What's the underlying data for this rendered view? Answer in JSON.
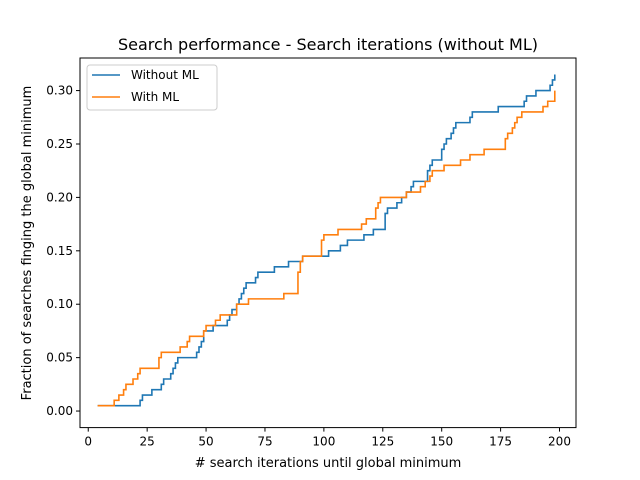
{
  "chart_data": {
    "type": "line",
    "title": "Search performance - Search iterations (without ML)",
    "xlabel": "# search iterations until global minimum",
    "ylabel": "Fraction of searches finging the global minimum",
    "xlim": [
      -3.5,
      207
    ],
    "ylim": [
      -0.0155,
      0.3305
    ],
    "xticks": [
      0,
      25,
      50,
      75,
      100,
      125,
      150,
      175,
      200
    ],
    "xtick_labels": [
      "0",
      "25",
      "50",
      "75",
      "100",
      "125",
      "150",
      "175",
      "200"
    ],
    "yticks": [
      0.0,
      0.05,
      0.1,
      0.15,
      0.2,
      0.25,
      0.3
    ],
    "ytick_labels": [
      "0.00",
      "0.05",
      "0.10",
      "0.15",
      "0.20",
      "0.25",
      "0.30"
    ],
    "grid": false,
    "legend_position": "top-left",
    "step": true,
    "series": [
      {
        "name": "Without ML",
        "color": "#1f77b4",
        "points": [
          [
            4,
            0.005
          ],
          [
            21,
            0.005
          ],
          [
            22,
            0.01
          ],
          [
            23,
            0.015
          ],
          [
            26,
            0.015
          ],
          [
            27,
            0.02
          ],
          [
            30,
            0.02
          ],
          [
            31,
            0.025
          ],
          [
            32,
            0.03
          ],
          [
            34,
            0.03
          ],
          [
            35,
            0.035
          ],
          [
            36,
            0.04
          ],
          [
            37,
            0.045
          ],
          [
            38,
            0.05
          ],
          [
            45,
            0.05
          ],
          [
            46,
            0.055
          ],
          [
            47,
            0.06
          ],
          [
            48,
            0.065
          ],
          [
            49,
            0.075
          ],
          [
            52,
            0.075
          ],
          [
            53,
            0.08
          ],
          [
            58,
            0.08
          ],
          [
            59,
            0.085
          ],
          [
            60,
            0.09
          ],
          [
            61,
            0.095
          ],
          [
            63,
            0.1
          ],
          [
            64,
            0.105
          ],
          [
            65,
            0.11
          ],
          [
            66,
            0.115
          ],
          [
            67,
            0.12
          ],
          [
            71,
            0.125
          ],
          [
            72,
            0.13
          ],
          [
            78,
            0.13
          ],
          [
            79,
            0.135
          ],
          [
            84,
            0.135
          ],
          [
            85,
            0.14
          ],
          [
            90,
            0.14
          ],
          [
            91,
            0.145
          ],
          [
            101,
            0.145
          ],
          [
            102,
            0.15
          ],
          [
            106,
            0.15
          ],
          [
            107,
            0.155
          ],
          [
            110,
            0.16
          ],
          [
            116,
            0.16
          ],
          [
            117,
            0.165
          ],
          [
            121,
            0.17
          ],
          [
            125,
            0.17
          ],
          [
            126,
            0.185
          ],
          [
            127,
            0.19
          ],
          [
            130,
            0.19
          ],
          [
            131,
            0.195
          ],
          [
            133,
            0.2
          ],
          [
            135,
            0.205
          ],
          [
            137,
            0.21
          ],
          [
            138,
            0.215
          ],
          [
            143,
            0.215
          ],
          [
            144,
            0.225
          ],
          [
            145,
            0.23
          ],
          [
            146,
            0.235
          ],
          [
            149,
            0.235
          ],
          [
            150,
            0.245
          ],
          [
            151,
            0.25
          ],
          [
            152,
            0.255
          ],
          [
            154,
            0.26
          ],
          [
            155,
            0.265
          ],
          [
            156,
            0.27
          ],
          [
            161,
            0.27
          ],
          [
            162,
            0.275
          ],
          [
            163,
            0.28
          ],
          [
            173,
            0.28
          ],
          [
            174,
            0.285
          ],
          [
            184,
            0.285
          ],
          [
            185,
            0.29
          ],
          [
            186,
            0.295
          ],
          [
            190,
            0.3
          ],
          [
            195,
            0.3
          ],
          [
            196,
            0.305
          ],
          [
            197,
            0.31
          ],
          [
            198,
            0.315
          ]
        ]
      },
      {
        "name": "With ML",
        "color": "#ff7f0e",
        "points": [
          [
            4,
            0.005
          ],
          [
            10,
            0.005
          ],
          [
            11,
            0.01
          ],
          [
            13,
            0.015
          ],
          [
            15,
            0.02
          ],
          [
            16,
            0.025
          ],
          [
            19,
            0.03
          ],
          [
            21,
            0.035
          ],
          [
            22,
            0.04
          ],
          [
            29,
            0.04
          ],
          [
            30,
            0.05
          ],
          [
            31,
            0.055
          ],
          [
            38,
            0.055
          ],
          [
            39,
            0.06
          ],
          [
            41,
            0.06
          ],
          [
            42,
            0.065
          ],
          [
            43,
            0.07
          ],
          [
            48,
            0.07
          ],
          [
            49,
            0.075
          ],
          [
            50,
            0.08
          ],
          [
            53,
            0.08
          ],
          [
            54,
            0.085
          ],
          [
            56,
            0.09
          ],
          [
            62,
            0.09
          ],
          [
            63,
            0.1
          ],
          [
            67,
            0.1
          ],
          [
            68,
            0.105
          ],
          [
            82,
            0.105
          ],
          [
            83,
            0.11
          ],
          [
            88,
            0.11
          ],
          [
            89,
            0.13
          ],
          [
            90,
            0.14
          ],
          [
            91,
            0.145
          ],
          [
            98,
            0.145
          ],
          [
            99,
            0.16
          ],
          [
            100,
            0.165
          ],
          [
            105,
            0.165
          ],
          [
            106,
            0.17
          ],
          [
            115,
            0.17
          ],
          [
            116,
            0.175
          ],
          [
            118,
            0.18
          ],
          [
            121,
            0.18
          ],
          [
            122,
            0.19
          ],
          [
            123,
            0.195
          ],
          [
            124,
            0.2
          ],
          [
            134,
            0.2
          ],
          [
            135,
            0.205
          ],
          [
            140,
            0.205
          ],
          [
            141,
            0.21
          ],
          [
            143,
            0.215
          ],
          [
            145,
            0.22
          ],
          [
            146,
            0.225
          ],
          [
            150,
            0.225
          ],
          [
            151,
            0.23
          ],
          [
            157,
            0.23
          ],
          [
            158,
            0.235
          ],
          [
            162,
            0.24
          ],
          [
            167,
            0.24
          ],
          [
            168,
            0.245
          ],
          [
            176,
            0.245
          ],
          [
            177,
            0.255
          ],
          [
            178,
            0.26
          ],
          [
            180,
            0.265
          ],
          [
            181,
            0.27
          ],
          [
            182,
            0.275
          ],
          [
            184,
            0.28
          ],
          [
            192,
            0.28
          ],
          [
            193,
            0.285
          ],
          [
            195,
            0.29
          ],
          [
            197,
            0.29
          ],
          [
            198,
            0.3
          ]
        ]
      }
    ]
  }
}
